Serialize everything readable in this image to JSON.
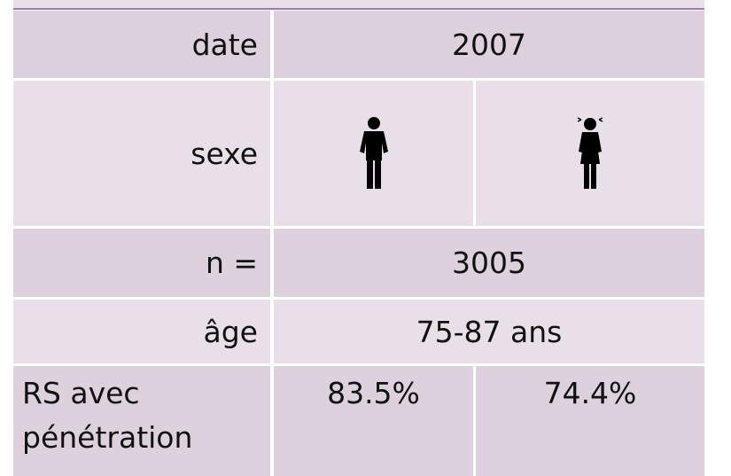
{
  "table": {
    "rows": [
      [
        "date",
        "2007"
      ],
      [
        "sexe"
      ],
      [
        "n =",
        "3005"
      ],
      [
        "âge",
        "75-87 ans"
      ],
      [
        "RS avec pénétration",
        "83.5%",
        "74.4%"
      ]
    ]
  }
}
